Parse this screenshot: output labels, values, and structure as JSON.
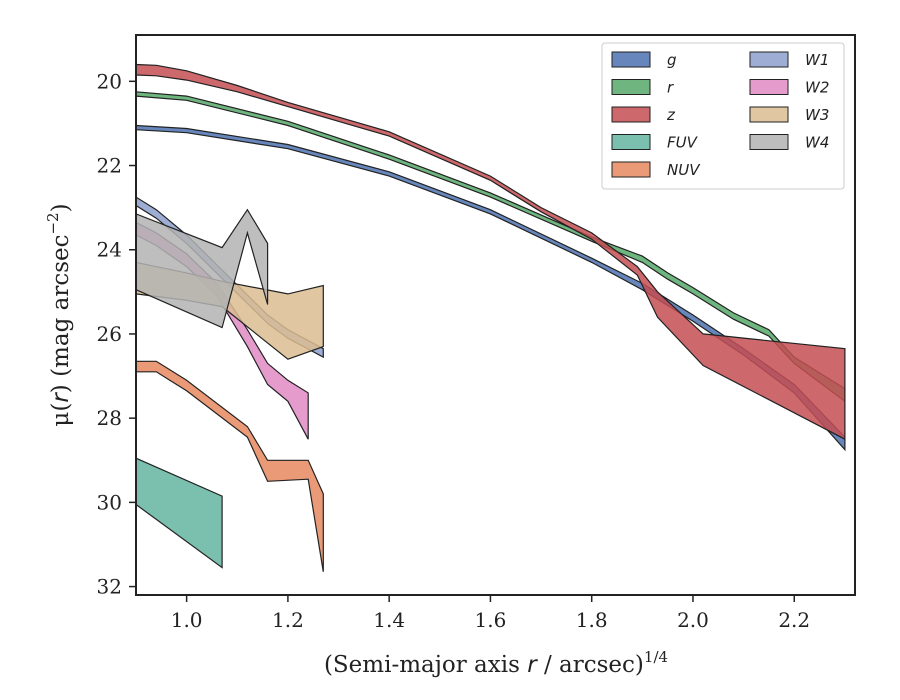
{
  "chart_data": {
    "type": "area",
    "title": "",
    "xlabel": {
      "prefix": "(Semi-major axis ",
      "var": "r",
      "suffix": " / arcsec)",
      "exp": "1/4"
    },
    "ylabel": {
      "prefix": "μ(",
      "var": "r",
      "suffix": ") (mag arcsec",
      "exp": "−2",
      "close": ")"
    },
    "xlim": [
      0.9,
      2.32
    ],
    "ylim": [
      32.2,
      18.9
    ],
    "y_inverted": true,
    "x_ticks": [
      1.0,
      1.2,
      1.4,
      1.6,
      1.8,
      2.0,
      2.2
    ],
    "x_tick_labels": [
      "1.0",
      "1.2",
      "1.4",
      "1.6",
      "1.8",
      "2.0",
      "2.2"
    ],
    "y_ticks": [
      20,
      22,
      24,
      26,
      28,
      30,
      32
    ],
    "y_tick_labels": [
      "20",
      "22",
      "24",
      "26",
      "28",
      "30",
      "32"
    ],
    "grid": false,
    "legend_position": "top-right",
    "series": [
      {
        "name": "g",
        "color": "#4c72b0",
        "upper": [
          [
            0.9,
            21.05
          ],
          [
            1.0,
            21.12
          ],
          [
            1.2,
            21.5
          ],
          [
            1.4,
            22.15
          ],
          [
            1.6,
            23.05
          ],
          [
            1.8,
            24.2
          ],
          [
            1.9,
            24.8
          ],
          [
            2.0,
            25.55
          ],
          [
            2.1,
            26.35
          ],
          [
            2.2,
            27.2
          ],
          [
            2.3,
            28.45
          ]
        ],
        "lower": [
          [
            0.9,
            21.15
          ],
          [
            1.0,
            21.22
          ],
          [
            1.2,
            21.6
          ],
          [
            1.4,
            22.25
          ],
          [
            1.6,
            23.15
          ],
          [
            1.8,
            24.3
          ],
          [
            1.9,
            24.95
          ],
          [
            2.0,
            25.7
          ],
          [
            2.1,
            26.5
          ],
          [
            2.2,
            27.4
          ],
          [
            2.3,
            28.75
          ]
        ]
      },
      {
        "name": "r",
        "color": "#55a868",
        "upper": [
          [
            0.9,
            20.25
          ],
          [
            1.0,
            20.35
          ],
          [
            1.2,
            20.95
          ],
          [
            1.4,
            21.75
          ],
          [
            1.6,
            22.65
          ],
          [
            1.8,
            23.7
          ],
          [
            1.9,
            24.15
          ],
          [
            1.95,
            24.55
          ],
          [
            2.0,
            24.9
          ],
          [
            2.08,
            25.5
          ],
          [
            2.15,
            25.9
          ],
          [
            2.2,
            26.55
          ],
          [
            2.3,
            27.3
          ]
        ],
        "lower": [
          [
            0.9,
            20.35
          ],
          [
            1.0,
            20.45
          ],
          [
            1.2,
            21.05
          ],
          [
            1.4,
            21.85
          ],
          [
            1.6,
            22.75
          ],
          [
            1.8,
            23.8
          ],
          [
            1.9,
            24.3
          ],
          [
            1.95,
            24.7
          ],
          [
            2.0,
            25.05
          ],
          [
            2.08,
            25.65
          ],
          [
            2.15,
            26.05
          ],
          [
            2.2,
            26.7
          ],
          [
            2.3,
            27.6
          ]
        ]
      },
      {
        "name": "z",
        "color": "#c44e52",
        "upper": [
          [
            0.9,
            19.6
          ],
          [
            0.94,
            19.62
          ],
          [
            1.0,
            19.75
          ],
          [
            1.1,
            20.1
          ],
          [
            1.2,
            20.5
          ],
          [
            1.4,
            21.2
          ],
          [
            1.6,
            22.25
          ],
          [
            1.7,
            23.0
          ],
          [
            1.8,
            23.6
          ],
          [
            1.89,
            24.4
          ],
          [
            1.93,
            25.0
          ],
          [
            2.02,
            26.0
          ],
          [
            2.3,
            26.35
          ]
        ],
        "lower": [
          [
            0.9,
            19.85
          ],
          [
            0.94,
            19.87
          ],
          [
            1.0,
            19.97
          ],
          [
            1.1,
            20.25
          ],
          [
            1.2,
            20.6
          ],
          [
            1.4,
            21.3
          ],
          [
            1.6,
            22.35
          ],
          [
            1.7,
            23.1
          ],
          [
            1.8,
            23.75
          ],
          [
            1.89,
            24.6
          ],
          [
            1.93,
            25.6
          ],
          [
            2.02,
            26.75
          ],
          [
            2.3,
            28.5
          ]
        ]
      },
      {
        "name": "FUV",
        "color": "#64b5a0",
        "upper": [
          [
            0.9,
            28.95
          ],
          [
            1.07,
            29.85
          ]
        ],
        "lower": [
          [
            0.9,
            30.05
          ],
          [
            1.07,
            31.55
          ]
        ]
      },
      {
        "name": "NUV",
        "color": "#e8885f",
        "upper": [
          [
            0.9,
            26.65
          ],
          [
            0.94,
            26.65
          ],
          [
            1.0,
            27.1
          ],
          [
            1.12,
            28.2
          ],
          [
            1.16,
            29.0
          ],
          [
            1.24,
            29.0
          ],
          [
            1.27,
            29.8
          ]
        ],
        "lower": [
          [
            0.9,
            26.9
          ],
          [
            0.94,
            26.9
          ],
          [
            1.0,
            27.35
          ],
          [
            1.12,
            28.45
          ],
          [
            1.16,
            29.5
          ],
          [
            1.24,
            29.45
          ],
          [
            1.27,
            31.65
          ]
        ]
      },
      {
        "name": "W1",
        "color": "#8c9fcc",
        "upper": [
          [
            0.9,
            22.75
          ],
          [
            0.94,
            23.05
          ],
          [
            1.0,
            23.65
          ],
          [
            1.08,
            24.6
          ],
          [
            1.16,
            25.55
          ],
          [
            1.2,
            25.9
          ],
          [
            1.27,
            26.35
          ]
        ],
        "lower": [
          [
            0.9,
            22.95
          ],
          [
            0.94,
            23.25
          ],
          [
            1.0,
            23.85
          ],
          [
            1.08,
            24.8
          ],
          [
            1.16,
            25.75
          ],
          [
            1.2,
            26.1
          ],
          [
            1.27,
            26.55
          ]
        ]
      },
      {
        "name": "W2",
        "color": "#e08bc4",
        "upper": [
          [
            0.9,
            23.35
          ],
          [
            0.94,
            23.6
          ],
          [
            1.0,
            24.1
          ],
          [
            1.06,
            24.8
          ],
          [
            1.12,
            25.9
          ],
          [
            1.16,
            26.7
          ],
          [
            1.2,
            27.1
          ],
          [
            1.24,
            27.4
          ]
        ],
        "lower": [
          [
            0.9,
            23.65
          ],
          [
            0.94,
            23.9
          ],
          [
            1.0,
            24.4
          ],
          [
            1.06,
            25.1
          ],
          [
            1.12,
            26.3
          ],
          [
            1.16,
            27.2
          ],
          [
            1.2,
            27.6
          ],
          [
            1.24,
            28.5
          ]
        ]
      },
      {
        "name": "W3",
        "color": "#dcbc92",
        "upper": [
          [
            0.9,
            24.3
          ],
          [
            1.0,
            24.55
          ],
          [
            1.07,
            24.75
          ],
          [
            1.2,
            25.05
          ],
          [
            1.27,
            24.85
          ]
        ],
        "lower": [
          [
            0.9,
            25.05
          ],
          [
            1.0,
            25.2
          ],
          [
            1.07,
            25.35
          ],
          [
            1.2,
            26.6
          ],
          [
            1.27,
            26.3
          ]
        ]
      },
      {
        "name": "W4",
        "color": "#b3b3b3",
        "upper": [
          [
            0.9,
            23.15
          ],
          [
            1.07,
            23.95
          ],
          [
            1.12,
            23.05
          ],
          [
            1.16,
            23.85
          ]
        ],
        "lower": [
          [
            0.9,
            24.95
          ],
          [
            1.07,
            25.85
          ],
          [
            1.12,
            23.6
          ],
          [
            1.16,
            25.3
          ]
        ]
      }
    ]
  }
}
